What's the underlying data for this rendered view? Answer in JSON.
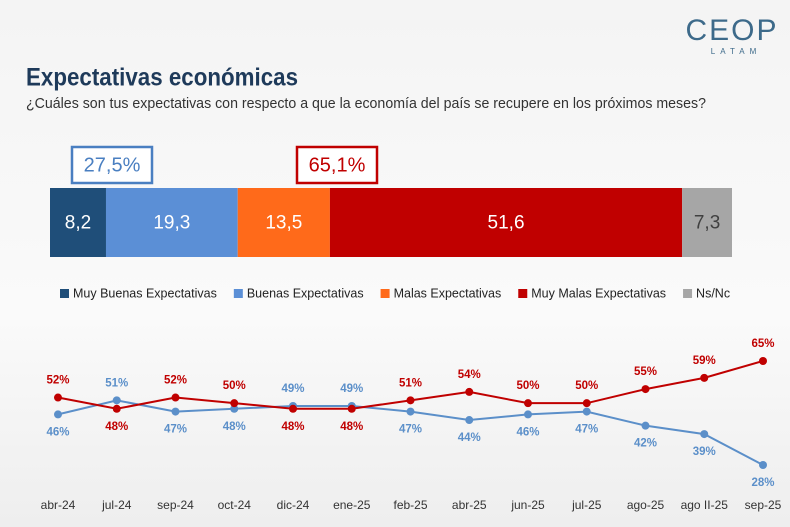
{
  "header": {
    "logo": "CEOP",
    "logo_sub": "LATAM"
  },
  "chart_data": [
    {
      "type": "stacked-bar",
      "title": "Expectativas económicas",
      "subtitle": "¿Cuáles son tus expectativas con respecto a que la economía del país se recupere en los próximos meses?",
      "annotations": [
        {
          "text": "27,5%",
          "color": "#4a7fc1"
        },
        {
          "text": "65,1%",
          "color": "#c00000"
        }
      ],
      "series": [
        {
          "name": "Muy Buenas Expectativas",
          "color": "#1f4e79",
          "label_color": "#ffffff",
          "values": [
            8.2
          ],
          "value_labels": [
            "8,2"
          ]
        },
        {
          "name": "Buenas Expectativas",
          "color": "#5b8fd6",
          "label_color": "#ffffff",
          "values": [
            19.3
          ],
          "value_labels": [
            "19,3"
          ]
        },
        {
          "name": "Malas Expectativas",
          "color": "#ff6a1a",
          "label_color": "#ffffff",
          "values": [
            13.5
          ],
          "value_labels": [
            "13,5"
          ]
        },
        {
          "name": "Muy Malas Expectativas",
          "color": "#c00000",
          "label_color": "#ffffff",
          "values": [
            51.6
          ],
          "value_labels": [
            "51,6"
          ]
        },
        {
          "name": "Ns/Nc",
          "color": "#a6a6a6",
          "label_color": "#404040",
          "values": [
            7.3
          ],
          "value_labels": [
            "7,3"
          ]
        }
      ]
    },
    {
      "type": "line",
      "categories": [
        "abr-24",
        "jul-24",
        "sep-24",
        "oct-24",
        "dic-24",
        "ene-25",
        "feb-25",
        "abr-25",
        "jun-25",
        "jul-25",
        "ago-25",
        "ago II-25",
        "sep-25"
      ],
      "series": [
        {
          "color": "#5b8fc9",
          "values": [
            46,
            51,
            47,
            48,
            49,
            49,
            47,
            44,
            46,
            47,
            42,
            39,
            28
          ],
          "value_labels": [
            "46%",
            "51%",
            "47%",
            "48%",
            "49%",
            "49%",
            "47%",
            "44%",
            "46%",
            "47%",
            "42%",
            "39%",
            "28%"
          ]
        },
        {
          "color": "#c00000",
          "values": [
            52,
            48,
            52,
            50,
            48,
            48,
            51,
            54,
            50,
            50,
            55,
            59,
            65
          ],
          "value_labels": [
            "52%",
            "48%",
            "52%",
            "50%",
            "48%",
            "48%",
            "51%",
            "54%",
            "50%",
            "50%",
            "55%",
            "59%",
            "65%"
          ]
        }
      ]
    }
  ]
}
